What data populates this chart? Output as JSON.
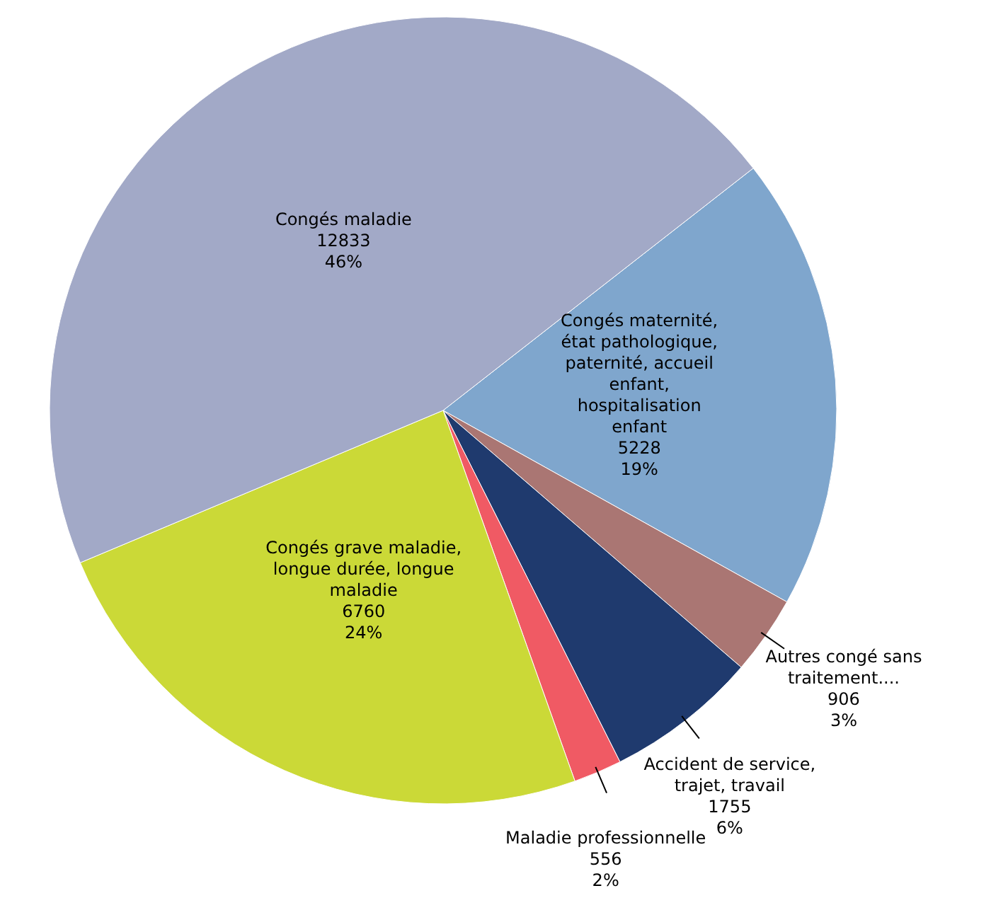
{
  "chart_data": {
    "type": "pie",
    "categories": [
      "Congés maternité, état pathologique, paternité, accueil enfant, hospitalisation enfant",
      "Autres congé sans traitement....",
      "Accident de service, trajet, travail",
      "Maladie professionnelle",
      "Congés grave maladie, longue durée, longue maladie",
      "Congés maladie"
    ],
    "values": [
      5228,
      906,
      1755,
      556,
      6760,
      12833
    ],
    "value_labels": [
      "5228\n19%",
      "906\n3%",
      "1755\n6%",
      "556\n2%",
      "6760\n24%",
      "12833\n46%"
    ],
    "colors": [
      "#7fa6cd",
      "#aa7673",
      "#1f3a6e",
      "#f05a64",
      "#cbd937",
      "#a2a9c7"
    ]
  }
}
